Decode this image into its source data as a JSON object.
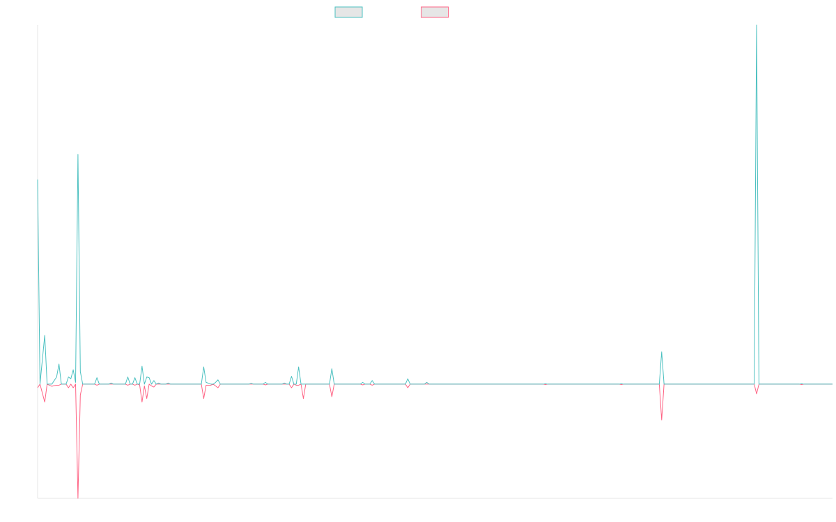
{
  "chart_data": {
    "type": "line",
    "x": [
      0,
      1,
      3,
      4,
      6,
      7,
      8,
      9,
      10,
      12,
      13,
      14,
      15,
      16,
      17,
      18,
      19,
      24,
      25,
      26,
      30,
      31,
      32,
      37,
      38,
      39,
      40,
      41,
      42,
      43,
      44,
      45,
      46,
      47,
      48,
      49,
      50,
      51,
      52,
      54,
      55,
      56,
      69,
      70,
      71,
      73,
      74,
      75,
      76,
      77,
      89,
      90,
      91,
      95,
      96,
      97,
      103,
      104,
      105,
      106,
      107,
      108,
      109,
      110,
      111,
      112,
      113,
      123,
      124,
      125,
      136,
      137,
      138,
      140,
      141,
      142,
      155,
      156,
      157,
      163,
      164,
      165,
      213,
      214,
      215,
      245,
      246,
      247,
      262,
      263,
      264,
      302,
      303,
      304,
      321,
      322,
      323,
      335
    ],
    "series": [
      {
        "color": "#ff6384",
        "values": [
          -1,
          0,
          -5,
          0,
          -0.6,
          -0.4,
          -0.3,
          -0.3,
          0,
          0,
          -1,
          0,
          -1,
          0,
          -31.8,
          -3,
          0,
          0,
          -0.3,
          0,
          0,
          0,
          0,
          0,
          -0.3,
          0,
          0,
          -0.3,
          0,
          -0.2,
          -5,
          -0.5,
          -4,
          0,
          -0.5,
          -0.8,
          0,
          0,
          0,
          0,
          0,
          0,
          0,
          -4,
          -0.3,
          -0.3,
          0,
          -0.5,
          -1,
          0,
          0,
          0,
          0,
          0,
          -0.2,
          0,
          0,
          0,
          0,
          0,
          -1,
          0,
          -0.3,
          -0.3,
          0,
          -4,
          0,
          0,
          -3.5,
          0,
          0,
          -0.2,
          0,
          0,
          -0.3,
          0,
          0,
          -1,
          0,
          0,
          0,
          0,
          0,
          -0.1,
          0,
          0,
          -0.1,
          0,
          0,
          -10,
          0,
          0,
          -2.7,
          0,
          0,
          -0.1,
          0,
          0
        ]
      },
      {
        "color": "#4bc0c0",
        "values": [
          57,
          0,
          13.6,
          0,
          0,
          1,
          2,
          5.6,
          0,
          0,
          2,
          1.5,
          4,
          0.5,
          64,
          3.5,
          0,
          0,
          1.8,
          0,
          0,
          0.3,
          0,
          0,
          2,
          0,
          0,
          1.8,
          0,
          0,
          5,
          0,
          2,
          1.8,
          0,
          1,
          0,
          0.3,
          0,
          0,
          0.3,
          0,
          0,
          4.8,
          0.5,
          0,
          0,
          0.5,
          1.2,
          0,
          0,
          0.2,
          0,
          0,
          0.5,
          0,
          0,
          0.3,
          0,
          0,
          2.2,
          0,
          0,
          4.8,
          0,
          0,
          0,
          0,
          4.3,
          0,
          0,
          0.5,
          0,
          0,
          1,
          0,
          0,
          1.5,
          0,
          0,
          0.5,
          0,
          0,
          0.1,
          0,
          0,
          0.1,
          0,
          0,
          9,
          0,
          0,
          100,
          0,
          0,
          0.1,
          0,
          0
        ]
      }
    ],
    "xlim": [
      0,
      335
    ],
    "ylim": [
      -31.8,
      100
    ]
  }
}
